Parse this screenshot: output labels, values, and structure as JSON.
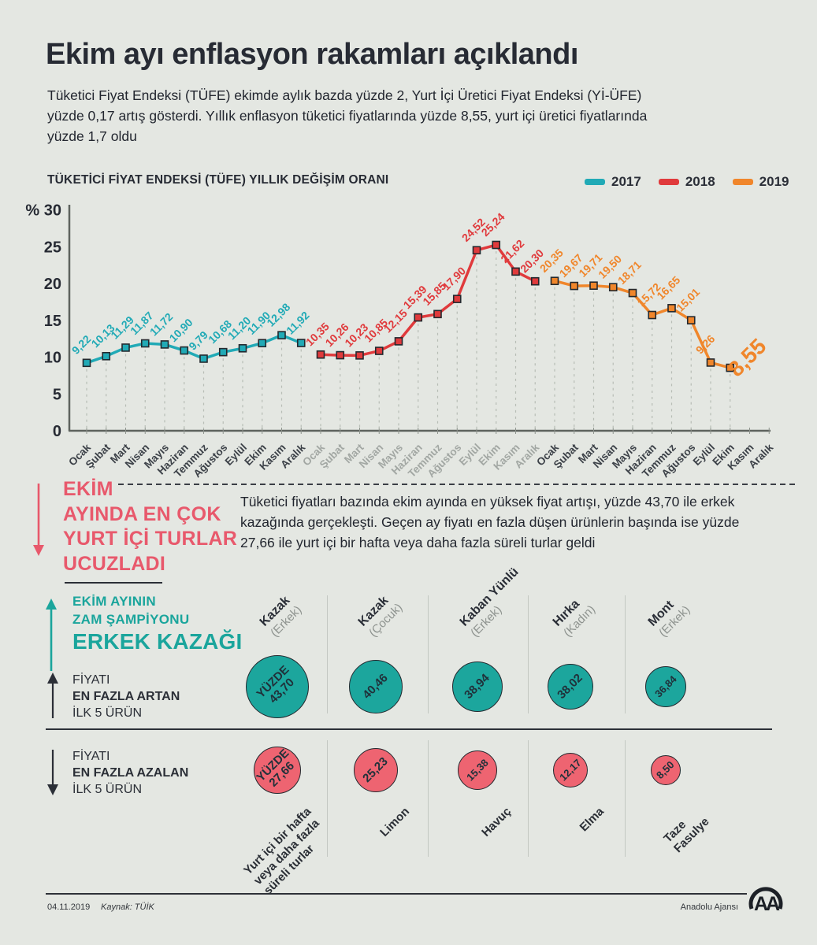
{
  "page": {
    "title": "Ekim ayı enflasyon rakamları açıklandı",
    "intro": "Tüketici Fiyat Endeksi (TÜFE) ekimde aylık bazda yüzde 2, Yurt İçi Üretici Fiyat Endeksi (Yİ-ÜFE) yüzde 0,17 artış gösterdi. Yıllık enflasyon tüketici fiyatlarında yüzde 8,55, yurt içi üretici fiyatlarında yüzde 1,7 oldu"
  },
  "chart": {
    "title": "TÜKETİCİ FİYAT ENDEKSİ (TÜFE) YILLIK DEĞİŞİM ORANI",
    "legend": [
      {
        "label": "2017",
        "color": "#21aab6"
      },
      {
        "label": "2018",
        "color": "#e03a3c"
      },
      {
        "label": "2019",
        "color": "#f0862b"
      }
    ]
  },
  "chart_data": [
    {
      "type": "line",
      "title": "TÜKETİCİ FİYAT ENDEKSİ (TÜFE) YILLIK DEĞİŞİM ORANI",
      "ylabel_prefix": "%",
      "ylim": [
        0,
        30
      ],
      "yticks": [
        30,
        25,
        20,
        15,
        10,
        5,
        0
      ],
      "grid": "dashed-vertical-droplines",
      "legend_position": "top-right",
      "months": [
        "Ocak",
        "Şubat",
        "Mart",
        "Nisan",
        "Mayıs",
        "Haziran",
        "Temmuz",
        "Ağustos",
        "Eylül",
        "Ekim",
        "Kasım",
        "Aralık"
      ],
      "dim_year_labels": "2018",
      "series": [
        {
          "name": "2017",
          "color": "#21aab6",
          "start_month_index": 0,
          "values": [
            9.22,
            10.13,
            11.29,
            11.87,
            11.72,
            10.9,
            9.79,
            10.68,
            11.2,
            11.9,
            12.98,
            11.92
          ]
        },
        {
          "name": "2018",
          "color": "#e03a3c",
          "start_month_index": 12,
          "values": [
            10.35,
            10.26,
            10.23,
            10.85,
            12.15,
            15.39,
            15.85,
            17.9,
            24.52,
            25.24,
            21.62,
            20.3
          ]
        },
        {
          "name": "2019",
          "color": "#f0862b",
          "start_month_index": 24,
          "emphasize_last": true,
          "values": [
            20.35,
            19.67,
            19.71,
            19.5,
            18.71,
            15.72,
            16.65,
            15.01,
            9.26,
            8.55
          ]
        }
      ]
    },
    {
      "type": "bubble",
      "group": "increase",
      "color": "#1ca69d",
      "arrow": "up",
      "title_lines": [
        "FİYATI",
        "EN FAZLA ARTAN",
        "İLK 5 ÜRÜN"
      ],
      "items": [
        {
          "label_lines": [
            "Kazak"
          ],
          "sublabel": "(Erkek)",
          "value": 43.7,
          "display_lines": [
            "YÜZDE",
            "43,70"
          ],
          "r": 40
        },
        {
          "label_lines": [
            "Kazak"
          ],
          "sublabel": "(Çocuk)",
          "value": 40.46,
          "display_lines": [
            "40,46"
          ],
          "r": 34
        },
        {
          "label_lines": [
            "Kaban Yünlü"
          ],
          "sublabel": "(Erkek)",
          "value": 38.94,
          "display_lines": [
            "38,94"
          ],
          "r": 32
        },
        {
          "label_lines": [
            "Hırka"
          ],
          "sublabel": "(Kadın)",
          "value": 38.02,
          "display_lines": [
            "38,02"
          ],
          "r": 29
        },
        {
          "label_lines": [
            "Mont"
          ],
          "sublabel": "(Erkek)",
          "value": 36.84,
          "display_lines": [
            "36,84"
          ],
          "r": 26
        }
      ]
    },
    {
      "type": "bubble",
      "group": "decrease",
      "color": "#ee6471",
      "arrow": "down",
      "title_lines": [
        "FİYATI",
        "EN FAZLA AZALAN",
        "İLK 5 ÜRÜN"
      ],
      "items": [
        {
          "label_lines": [
            "Yurt içi bir hafta",
            "veya daha fazla",
            "süreli turlar"
          ],
          "value": 27.66,
          "display_lines": [
            "YÜZDE",
            "27,66"
          ],
          "r": 30
        },
        {
          "label_lines": [
            "Limon"
          ],
          "value": 25.23,
          "display_lines": [
            "25,23"
          ],
          "r": 28
        },
        {
          "label_lines": [
            "Havuç"
          ],
          "value": 15.38,
          "display_lines": [
            "15,38"
          ],
          "r": 25
        },
        {
          "label_lines": [
            "Elma"
          ],
          "value": 12.17,
          "display_lines": [
            "12,17"
          ],
          "r": 22
        },
        {
          "label_lines": [
            "Taze",
            "Fasulye"
          ],
          "value": 8.5,
          "display_lines": [
            "8,50"
          ],
          "r": 19
        }
      ]
    }
  ],
  "highlight": {
    "color": "#e8596c",
    "heading_lines": [
      "EKİM",
      "AYINDA EN ÇOK",
      "YURT İÇİ TURLAR",
      "UCUZLADI"
    ],
    "body": "Tüketici fiyatları bazında ekim ayında en yüksek fiyat artışı, yüzde 43,70 ile erkek kazağında gerçekleşti. Geçen ay fiyatı en fazla düşen ürünlerin başında ise yüzde 27,66 ile yurt içi bir hafta veya daha fazla süreli turlar geldi"
  },
  "champion": {
    "color": "#1aa59c",
    "lines_small": [
      "EKİM AYININ",
      "ZAM ŞAMPİYONU"
    ],
    "line_big": "ERKEK KAZAĞI"
  },
  "footer": {
    "date": "04.11.2019",
    "source": "Kaynak: TÜİK",
    "agency": "Anadolu Ajansı",
    "logo_text": "AA"
  }
}
